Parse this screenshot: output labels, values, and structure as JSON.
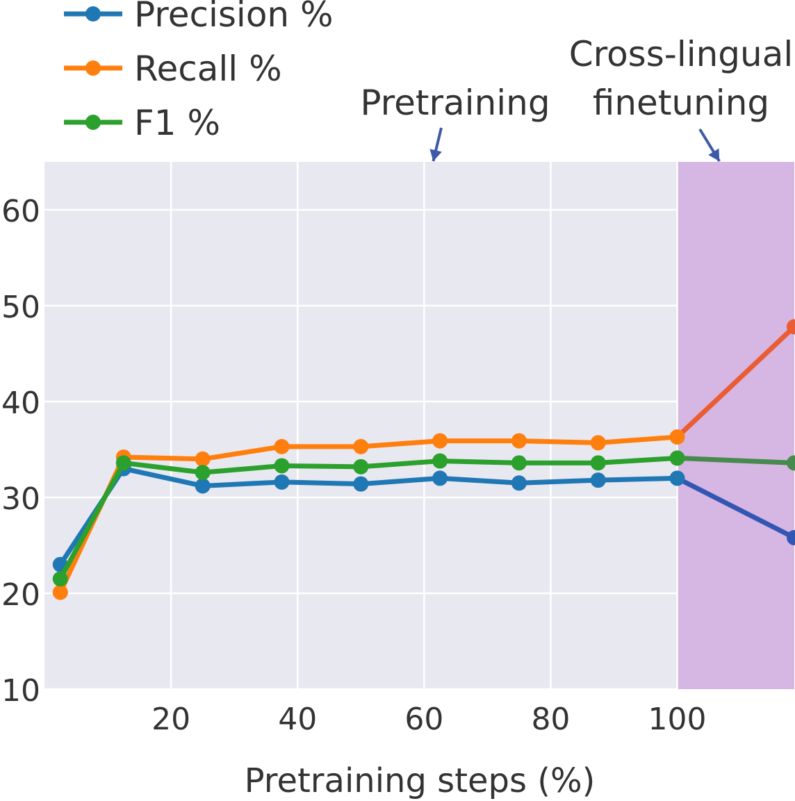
{
  "chart_data": {
    "type": "line",
    "xlabel": "Pretraining steps (%)",
    "ylabel": "",
    "xlim": [
      0,
      118.5
    ],
    "ylim": [
      10,
      65
    ],
    "grid": true,
    "legend_position": "top-left",
    "x_ticks": [
      20,
      40,
      60,
      80,
      100
    ],
    "y_ticks": [
      10,
      20,
      30,
      40,
      50,
      60
    ],
    "regions": [
      {
        "name": "Cross-lingual finetuning",
        "x_start": 100,
        "x_end": 118.5,
        "color": "#d6b6e3"
      }
    ],
    "annotations": [
      {
        "text": "Pretraining",
        "points_to_x": 61
      },
      {
        "lines": [
          "Cross-lingual",
          "finetuning"
        ],
        "points_to_x": 106
      }
    ],
    "series": [
      {
        "name": "Precision %",
        "color": "#1f77b4",
        "finetune_color": "#3456b3",
        "x": [
          2.5,
          12.5,
          25,
          37.5,
          50,
          62.5,
          75,
          87.5,
          100,
          118.5
        ],
        "values": [
          23.0,
          33.0,
          31.2,
          31.6,
          31.4,
          32.0,
          31.5,
          31.8,
          32.0,
          25.8
        ]
      },
      {
        "name": "Recall %",
        "color": "#ff7f0e",
        "finetune_color": "#ea5c32",
        "x": [
          2.5,
          12.5,
          25,
          37.5,
          50,
          62.5,
          75,
          87.5,
          100,
          118.5
        ],
        "values": [
          20.1,
          34.2,
          34.0,
          35.3,
          35.3,
          35.9,
          35.9,
          35.7,
          36.3,
          47.8
        ]
      },
      {
        "name": "F1 %",
        "color": "#2ca02c",
        "finetune_color": "#478a4e",
        "x": [
          2.5,
          12.5,
          25,
          37.5,
          50,
          62.5,
          75,
          87.5,
          100,
          118.5
        ],
        "values": [
          21.5,
          33.6,
          32.6,
          33.3,
          33.2,
          33.8,
          33.6,
          33.6,
          34.1,
          33.6
        ]
      }
    ]
  }
}
